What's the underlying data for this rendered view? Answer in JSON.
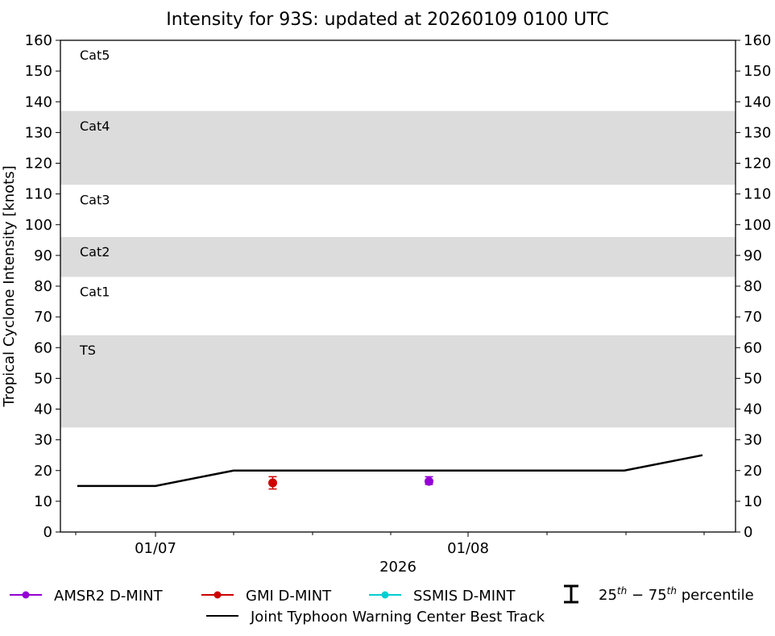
{
  "title": "Intensity for 93S: updated at 20260109 0100 UTC",
  "chart_data": {
    "type": "line",
    "title": "Intensity for 93S: updated at 20260109 0100 UTC",
    "xlabel": "2026",
    "ylabel": "Tropical Cyclone Intensity [knots]",
    "ylim": [
      0,
      160
    ],
    "yticks": [
      0,
      10,
      20,
      30,
      40,
      50,
      60,
      70,
      80,
      90,
      100,
      110,
      120,
      130,
      140,
      150,
      160
    ],
    "xtick_labels": [
      "01/07",
      "01/08"
    ],
    "grid": false,
    "legend_position": "bottom",
    "category_bands": [
      {
        "label": "TS",
        "range": [
          34,
          64
        ],
        "shaded": true
      },
      {
        "label": "Cat1",
        "range": [
          64,
          83
        ],
        "shaded": false
      },
      {
        "label": "Cat2",
        "range": [
          83,
          96
        ],
        "shaded": true
      },
      {
        "label": "Cat3",
        "range": [
          96,
          113
        ],
        "shaded": false
      },
      {
        "label": "Cat4",
        "range": [
          113,
          137
        ],
        "shaded": true
      },
      {
        "label": "Cat5",
        "range": [
          137,
          160
        ],
        "shaded": false
      }
    ],
    "series": [
      {
        "name": "Joint Typhoon Warning Center Best Track",
        "color": "#000000",
        "type": "line",
        "x": [
          "01/06 18Z",
          "01/07 00Z",
          "01/07 06Z",
          "01/07 12Z",
          "01/07 18Z",
          "01/08 00Z",
          "01/08 06Z",
          "01/08 12Z",
          "01/08 18Z"
        ],
        "values": [
          15,
          15,
          20,
          20,
          20,
          20,
          20,
          20,
          25
        ]
      },
      {
        "name": "AMSR2 D-MINT",
        "color": "#9400D3",
        "type": "scatter",
        "x": [
          "01/07 21Z"
        ],
        "values": [
          16.5
        ],
        "p25": [
          15.5
        ],
        "p75": [
          18
        ]
      },
      {
        "name": "GMI D-MINT",
        "color": "#CC0000",
        "type": "scatter",
        "x": [
          "01/07 09Z"
        ],
        "values": [
          16
        ],
        "p25": [
          14
        ],
        "p75": [
          18
        ]
      },
      {
        "name": "SSMIS D-MINT",
        "color": "#00CED1",
        "type": "scatter",
        "x": [],
        "values": []
      }
    ]
  },
  "legend": {
    "amsr2": "AMSR2 D-MINT",
    "gmi": "GMI D-MINT",
    "ssmis": "SSMIS D-MINT",
    "percentile_pre": "25",
    "percentile_sup1": "th",
    "percentile_mid": " − 75",
    "percentile_sup2": "th",
    "percentile_post": " percentile",
    "best_track": "Joint Typhoon Warning Center Best Track"
  },
  "colors": {
    "amsr2": "#9400D3",
    "gmi": "#CC0000",
    "ssmis": "#00CED1",
    "band": "#DCDCDC"
  }
}
